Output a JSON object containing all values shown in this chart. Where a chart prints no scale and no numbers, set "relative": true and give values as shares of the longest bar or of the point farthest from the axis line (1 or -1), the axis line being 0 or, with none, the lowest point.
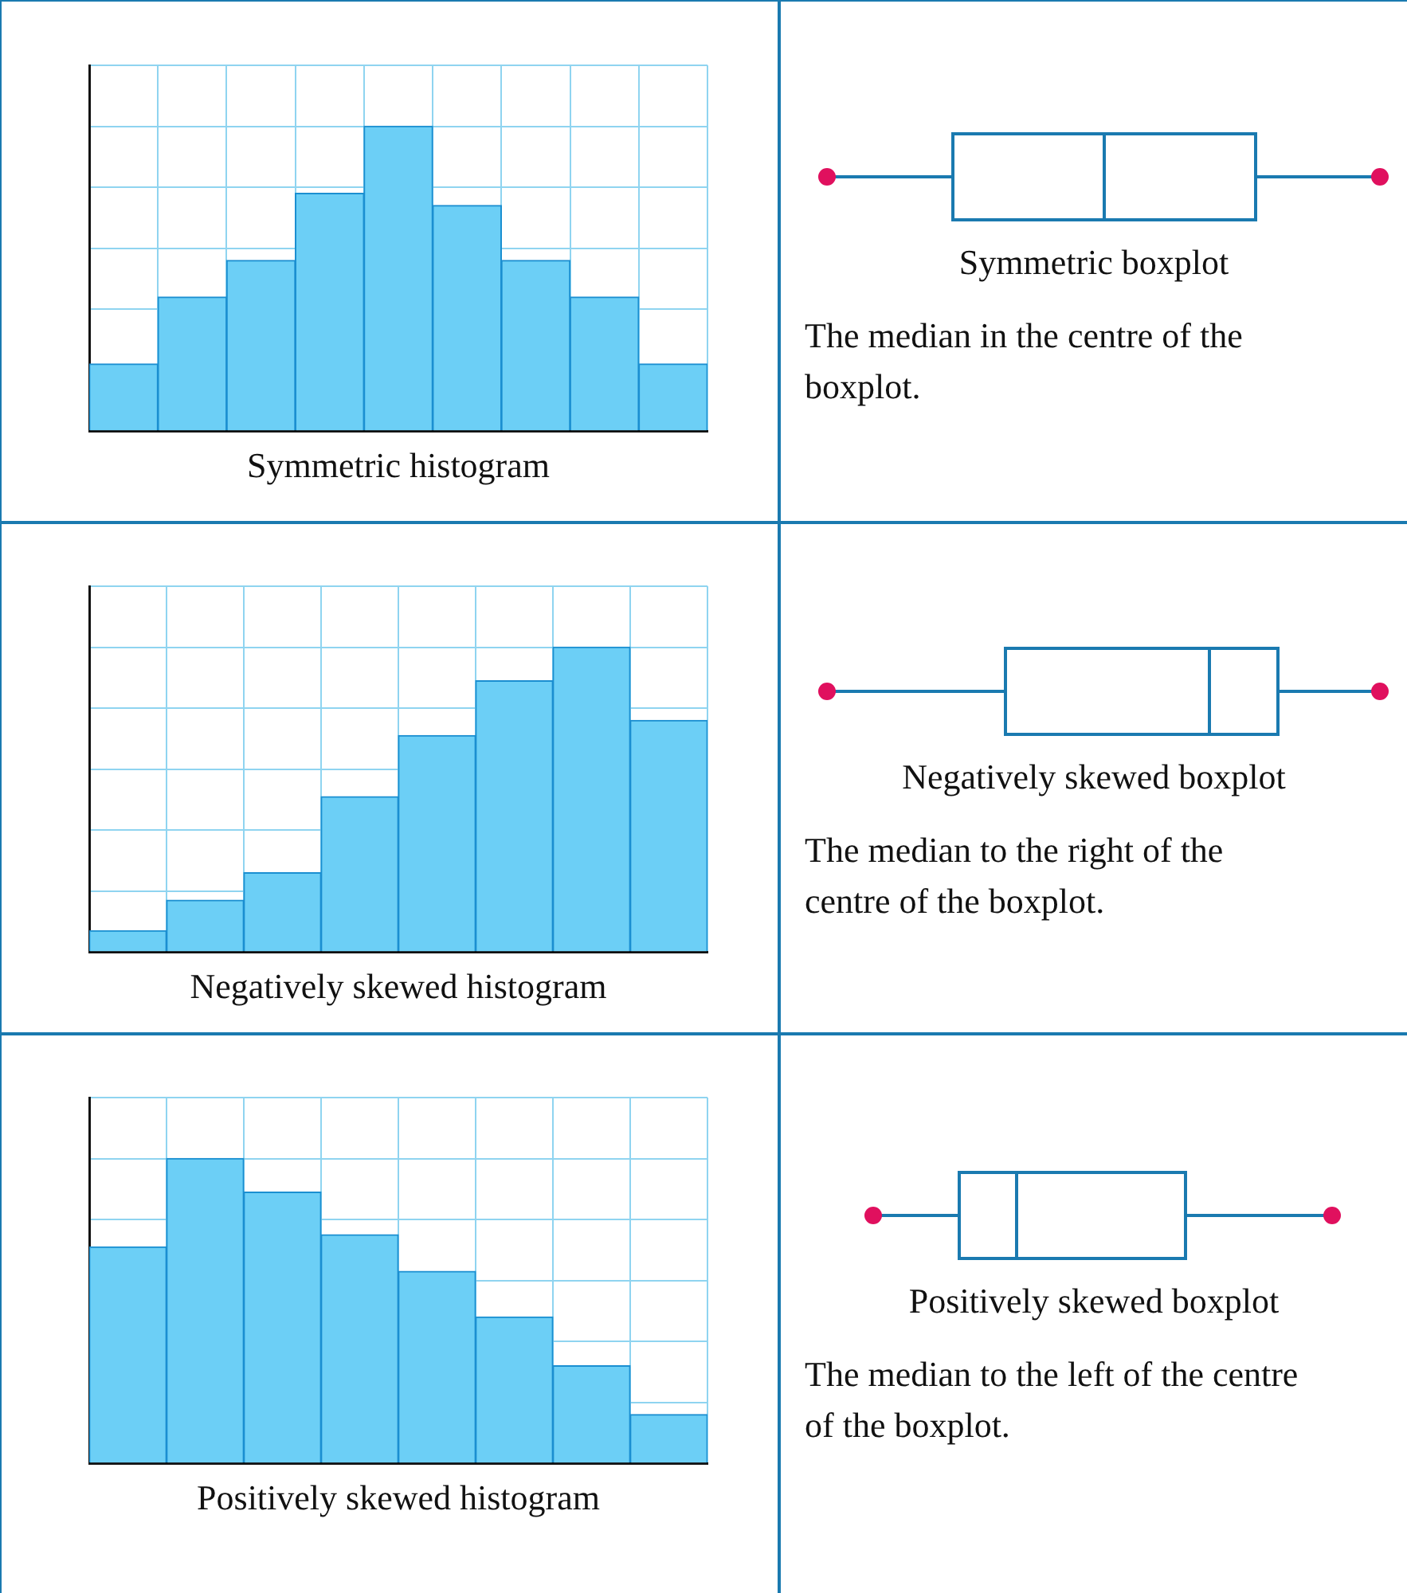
{
  "chart_data": [
    {
      "type": "bar",
      "relative": true,
      "categories": [
        null,
        null,
        null,
        null,
        null,
        null,
        null,
        null,
        null
      ],
      "values": [
        0.22,
        0.44,
        0.56,
        0.78,
        1,
        0.74,
        0.56,
        0.44,
        0.22
      ],
      "color": "#6ccff6",
      "grid": true,
      "xlabel": "Symmetric histogram"
    },
    {
      "type": "other",
      "xlabel": "Symmetric boxplot",
      "annotations": [
        "The median in the centre of the boxplot."
      ]
    },
    {
      "type": "bar",
      "relative": true,
      "categories": [
        null,
        null,
        null,
        null,
        null,
        null,
        null,
        null
      ],
      "values": [
        0.07,
        0.17,
        0.26,
        0.51,
        0.71,
        0.89,
        1,
        0.76
      ],
      "color": "#6ccff6",
      "grid": true,
      "xlabel": "Negatively skewed histogram"
    },
    {
      "type": "other",
      "xlabel": "Negatively skewed boxplot",
      "annotations": [
        "The median to the right of the centre of the boxplot."
      ]
    },
    {
      "type": "bar",
      "relative": true,
      "categories": [
        null,
        null,
        null,
        null,
        null,
        null,
        null,
        null
      ],
      "values": [
        0.71,
        1,
        0.89,
        0.75,
        0.63,
        0.48,
        0.32,
        0.16
      ],
      "color": "#6ccff6",
      "grid": true,
      "xlabel": "Positively skewed histogram"
    },
    {
      "type": "other",
      "xlabel": "Positively skewed boxplot",
      "annotations": [
        "The median to the left of the centre of the boxplot."
      ]
    }
  ]
}
